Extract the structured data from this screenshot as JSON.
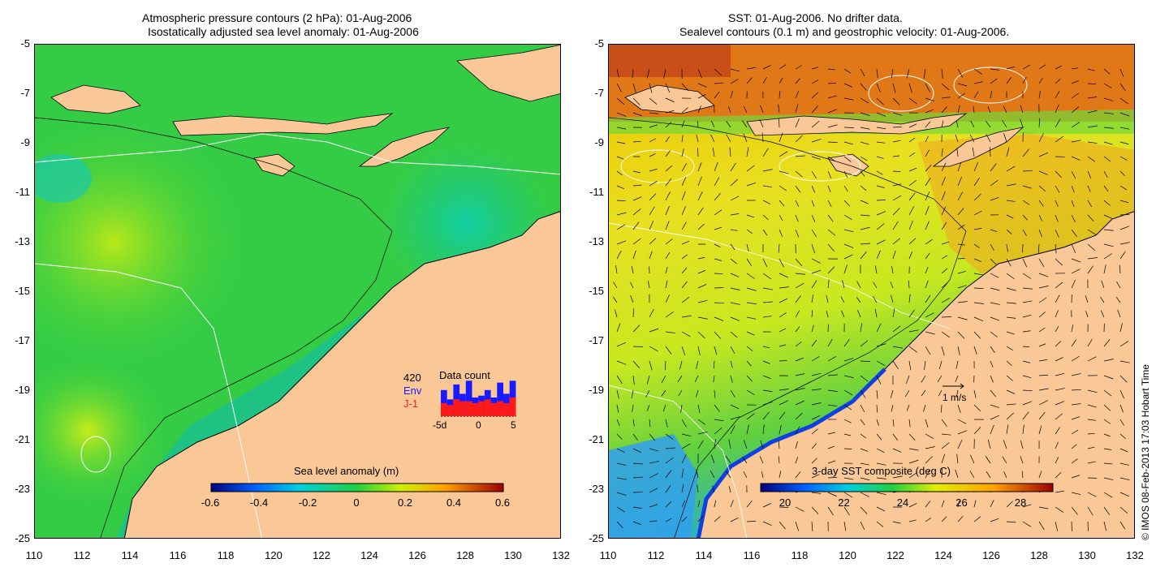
{
  "left_panel": {
    "title_line1": "Atmospheric pressure contours (2 hPa): 01-Aug-2006",
    "title_line2": "Isostatically adjusted sea level anomaly: 01-Aug-2006",
    "colorbar_title": "Sea level anomaly (m)",
    "colorbar_ticks": [
      "-0.6",
      "-0.4",
      "-0.2",
      "0",
      "0.2",
      "0.4",
      "0.6"
    ],
    "inset": {
      "title": "Data count",
      "count": "420",
      "series1": "Env",
      "series2": "J-1",
      "series1_color": "#1a1aff",
      "series2_color": "#ff1a1a",
      "x_ticks": [
        "-5d",
        "0",
        "5"
      ],
      "env_fraction": [
        0.7,
        0.45,
        0.85,
        0.6,
        0.95,
        0.5,
        0.55,
        0.7,
        0.5,
        0.9,
        0.6,
        0.95
      ],
      "j1_fraction": [
        0.35,
        0.3,
        0.45,
        0.4,
        0.4,
        0.35,
        0.4,
        0.45,
        0.35,
        0.4,
        0.35,
        0.5
      ]
    }
  },
  "right_panel": {
    "title_line1": "SST: 01-Aug-2006. No drifter data.",
    "title_line2": "Sealevel contours (0.1 m) and geostrophic velocity: 01-Aug-2006.",
    "colorbar_title": "3-day SST composite (deg C)",
    "colorbar_ticks": [
      "20",
      "22",
      "24",
      "26",
      "28"
    ],
    "scale_label": "1 m/s"
  },
  "axes": {
    "y_ticks": [
      "-5",
      "-7",
      "-9",
      "-11",
      "-13",
      "-15",
      "-17",
      "-19",
      "-21",
      "-23",
      "-25"
    ],
    "x_ticks": [
      "110",
      "112",
      "114",
      "116",
      "118",
      "120",
      "122",
      "124",
      "126",
      "128",
      "130",
      "132"
    ]
  },
  "copyright": "© IMOS 08-Feb-2013 17:03 Hobart Time",
  "colors": {
    "land": "#f9c896",
    "coast": "#000000",
    "contour": "#ffffff"
  }
}
